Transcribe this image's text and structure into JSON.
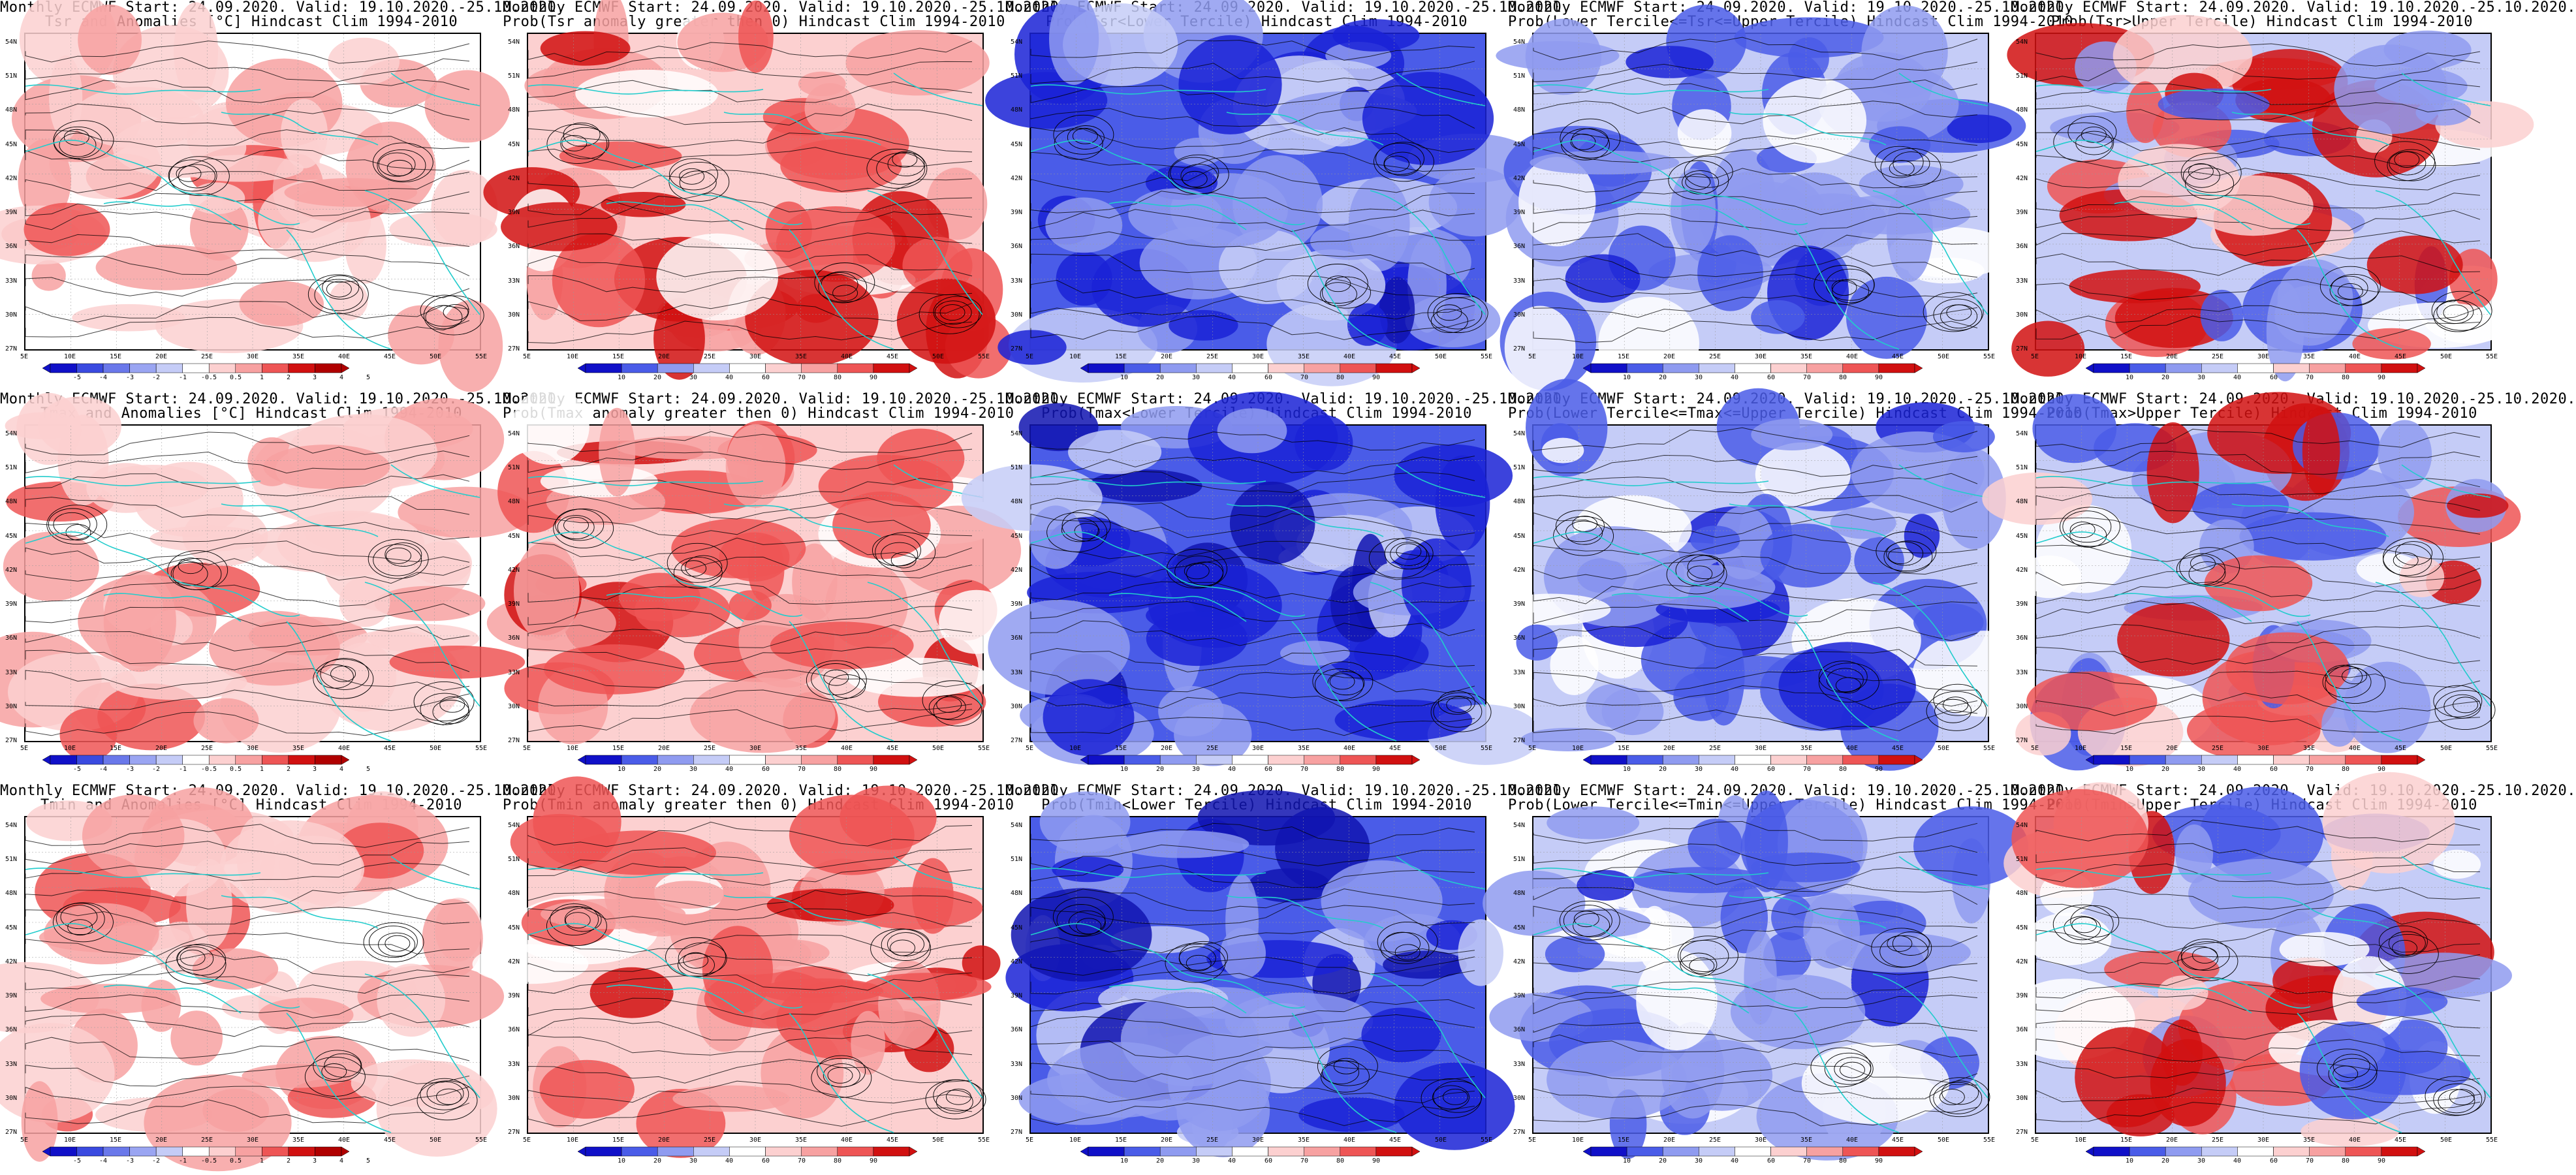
{
  "colors": {
    "blue_strong": "#1a22d6",
    "blue_mid": "#4a5ce8",
    "blue_light": "#8f9bf0",
    "blue_pale": "#c5ccf7",
    "red_pale": "#fcd0d0",
    "red_light": "#f7a1a1",
    "red_mid": "#ee5555",
    "red_strong": "#d11010",
    "coast": "#22cccc",
    "contour": "#000000"
  },
  "lat_labels": [
    "54N",
    "51N",
    "48N",
    "45N",
    "42N",
    "39N",
    "36N",
    "33N",
    "30N",
    "27N"
  ],
  "lon_labels": [
    "5E",
    "10E",
    "15E",
    "20E",
    "25E",
    "30E",
    "35E",
    "40E",
    "45E",
    "50E",
    "55E"
  ],
  "colorbars": {
    "anomaly": [
      "-5",
      "-4",
      "-3",
      "-2",
      "-1",
      "-0.5",
      "0.5",
      "1",
      "2",
      "3",
      "4",
      "5"
    ],
    "prob": [
      "10",
      "20",
      "30",
      "40",
      "60",
      "70",
      "80",
      "90"
    ]
  },
  "panels": [
    {
      "title1": "Monthly ECMWF Start: 24.09.2020. Valid: 19.10.2020.-25.10.2020.",
      "title2": "Tsr and Anomalies [°C] Hindcast Clim 1994-2010",
      "kind": "anomaly"
    },
    {
      "title1": "Monthly ECMWF Start: 24.09.2020. Valid: 19.10.2020.-25.10.2020.",
      "title2": "Prob(Tsr anomaly greater then 0) Hindcast Clim 1994-2010",
      "kind": "prob_red"
    },
    {
      "title1": "Monthly ECMWF Start: 24.09.2020. Valid: 19.10.2020.-25.10.2020.",
      "title2": "Prob(Tsr<Lower Tercile) Hindcast Clim 1994-2010",
      "kind": "prob_blue"
    },
    {
      "title1": "Monthly ECMWF Start: 24.09.2020. Valid: 19.10.2020.-25.10.2020.",
      "title2": "Prob(Lower Tercile<=Tsr<=Upper Tercile) Hindcast Clim 1994-2010",
      "kind": "prob_mixed"
    },
    {
      "title1": "Monthly ECMWF Start: 24.09.2020. Valid: 19.10.2020.-25.10.2020.",
      "title2": "Prob(Tsr>Upper Tercile) Hindcast Clim 1994-2010",
      "kind": "prob_upper"
    },
    {
      "title1": "Monthly ECMWF Start: 24.09.2020. Valid: 19.10.2020.-25.10.2020.",
      "title2": "Tmax and Anomalies [°C] Hindcast Clim 1994-2010",
      "kind": "anomaly"
    },
    {
      "title1": "Monthly ECMWF Start: 24.09.2020. Valid: 19.10.2020.-25.10.2020.",
      "title2": "Prob(Tmax anomaly greater then 0) Hindcast Clim 1994-2010",
      "kind": "prob_red"
    },
    {
      "title1": "Monthly ECMWF Start: 24.09.2020. Valid: 19.10.2020.-25.10.2020.",
      "title2": "Prob(Tmax<Lower Tercile) Hindcast Clim 1994-2010",
      "kind": "prob_blue"
    },
    {
      "title1": "Monthly ECMWF Start: 24.09.2020. Valid: 19.10.2020.-25.10.2020.",
      "title2": "Prob(Lower Tercile<=Tmax<=Upper Tercile) Hindcast Clim 1994-2010",
      "kind": "prob_mixed"
    },
    {
      "title1": "Monthly ECMWF Start: 24.09.2020. Valid: 19.10.2020.-25.10.2020.",
      "title2": "Prob(Tmax>Upper Tercile) Hindcast Clim 1994-2010",
      "kind": "prob_upper"
    },
    {
      "title1": "Monthly ECMWF Start: 24.09.2020. Valid: 19.10.2020.-25.10.2020.",
      "title2": "Tmin and Anomalies [°C] Hindcast Clim 1994-2010",
      "kind": "anomaly"
    },
    {
      "title1": "Monthly ECMWF Start: 24.09.2020. Valid: 19.10.2020.-25.10.2020.",
      "title2": "Prob(Tmin anomaly greater then 0) Hindcast Clim 1994-2010",
      "kind": "prob_red"
    },
    {
      "title1": "Monthly ECMWF Start: 24.09.2020. Valid: 19.10.2020.-25.10.2020.",
      "title2": "Prob(Tmin<Lower Tercile) Hindcast Clim 1994-2010",
      "kind": "prob_blue"
    },
    {
      "title1": "Monthly ECMWF Start: 24.09.2020. Valid: 19.10.2020.-25.10.2020.",
      "title2": "Prob(Lower Tercile<=Tmin<=Upper Tercile) Hindcast Clim 1994-2010",
      "kind": "prob_mixed"
    },
    {
      "title1": "Monthly ECMWF Start: 24.09.2020. Valid: 19.10.2020.-25.10.2020.",
      "title2": "Prob(Tmin>Upper Tercile) Hindcast Clim 1994-2010",
      "kind": "prob_upper"
    }
  ]
}
